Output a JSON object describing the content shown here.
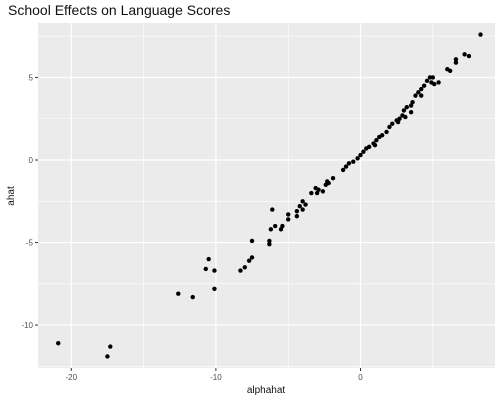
{
  "chart_data": {
    "type": "scatter",
    "title": "School Effects on Language Scores",
    "xlabel": "alphahat",
    "ylabel": "ahat",
    "xlim": [
      -22.3,
      9.3
    ],
    "ylim": [
      -12.6,
      8.3
    ],
    "x_ticks": [
      -20,
      -10,
      0
    ],
    "y_ticks": [
      -10,
      -5,
      0,
      5
    ],
    "grid": true,
    "point_color": "#000000",
    "panel_color": "#ebebeb",
    "grid_color": "#ffffff",
    "points": [
      [
        -20.9,
        -11.1
      ],
      [
        -17.5,
        -11.9
      ],
      [
        -17.3,
        -11.3
      ],
      [
        -12.6,
        -8.1
      ],
      [
        -11.6,
        -8.3
      ],
      [
        -10.7,
        -6.6
      ],
      [
        -10.5,
        -6.0
      ],
      [
        -10.1,
        -6.7
      ],
      [
        -10.1,
        -7.8
      ],
      [
        -8.3,
        -6.7
      ],
      [
        -8.0,
        -6.5
      ],
      [
        -7.7,
        -6.1
      ],
      [
        -7.5,
        -5.9
      ],
      [
        -7.5,
        -4.9
      ],
      [
        -6.3,
        -5.1
      ],
      [
        -6.3,
        -4.9
      ],
      [
        -6.2,
        -4.2
      ],
      [
        -6.1,
        -3.0
      ],
      [
        -5.9,
        -4.0
      ],
      [
        -5.5,
        -4.2
      ],
      [
        -5.4,
        -4.0
      ],
      [
        -5.0,
        -3.6
      ],
      [
        -5.0,
        -3.3
      ],
      [
        -4.4,
        -3.4
      ],
      [
        -4.4,
        -3.1
      ],
      [
        -4.2,
        -2.8
      ],
      [
        -4.0,
        -2.5
      ],
      [
        -4.0,
        -3.0
      ],
      [
        -3.8,
        -2.7
      ],
      [
        -3.4,
        -2.0
      ],
      [
        -3.1,
        -1.7
      ],
      [
        -3.0,
        -2.0
      ],
      [
        -2.9,
        -1.8
      ],
      [
        -2.6,
        -1.9
      ],
      [
        -2.4,
        -1.5
      ],
      [
        -2.3,
        -1.3
      ],
      [
        -2.2,
        -1.4
      ],
      [
        -1.9,
        -1.1
      ],
      [
        -1.2,
        -0.6
      ],
      [
        -1.0,
        -0.4
      ],
      [
        -0.8,
        -0.2
      ],
      [
        -0.5,
        -0.1
      ],
      [
        -0.2,
        0.1
      ],
      [
        0.0,
        0.3
      ],
      [
        0.2,
        0.5
      ],
      [
        0.4,
        0.7
      ],
      [
        0.6,
        0.8
      ],
      [
        0.9,
        1.0
      ],
      [
        1.0,
        0.9
      ],
      [
        1.1,
        1.2
      ],
      [
        1.3,
        1.4
      ],
      [
        1.5,
        1.5
      ],
      [
        1.8,
        1.7
      ],
      [
        2.0,
        2.0
      ],
      [
        2.2,
        2.2
      ],
      [
        2.5,
        2.4
      ],
      [
        2.7,
        2.5
      ],
      [
        2.9,
        2.7
      ],
      [
        3.0,
        3.0
      ],
      [
        3.2,
        3.2
      ],
      [
        3.5,
        3.3
      ],
      [
        3.6,
        3.5
      ],
      [
        3.8,
        3.9
      ],
      [
        4.0,
        4.1
      ],
      [
        4.2,
        4.3
      ],
      [
        4.4,
        4.5
      ],
      [
        4.6,
        4.8
      ],
      [
        4.8,
        5.0
      ],
      [
        5.0,
        5.0
      ],
      [
        4.9,
        4.7
      ],
      [
        2.6,
        2.3
      ],
      [
        3.1,
        2.6
      ],
      [
        3.5,
        2.9
      ],
      [
        4.2,
        3.9
      ],
      [
        5.1,
        4.6
      ],
      [
        5.4,
        4.7
      ],
      [
        6.0,
        5.5
      ],
      [
        6.2,
        5.4
      ],
      [
        6.6,
        5.9
      ],
      [
        6.6,
        6.1
      ],
      [
        7.2,
        6.4
      ],
      [
        7.5,
        6.3
      ],
      [
        8.3,
        7.6
      ]
    ]
  }
}
